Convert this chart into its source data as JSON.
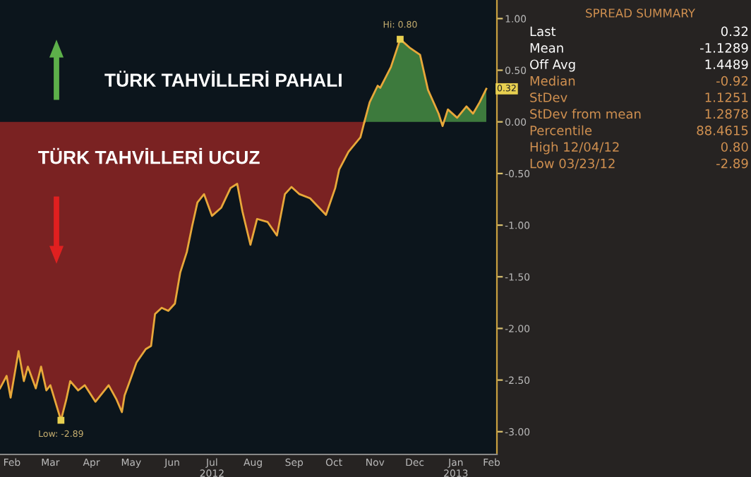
{
  "chart_data": [
    {
      "type": "area",
      "series": [
        {
          "color": "#7a2222",
          "x": [
            "2012-02-06",
            "2012-02-11",
            "2012-02-14",
            "2012-02-20",
            "2012-02-24",
            "2012-02-27",
            "2012-03-04",
            "2012-03-08",
            "2012-03-12",
            "2012-03-15",
            "2012-03-23",
            "2012-03-27",
            "2012-03-30",
            "2012-04-05",
            "2012-04-10",
            "2012-04-18",
            "2012-04-28",
            "2012-05-04",
            "2012-05-08",
            "2012-05-10",
            "2012-05-14",
            "2012-05-19",
            "2012-05-26",
            "2012-05-30",
            "2012-06-02",
            "2012-06-07",
            "2012-06-12",
            "2012-06-17",
            "2012-06-21",
            "2012-06-26",
            "2012-06-30",
            "2012-07-04",
            "2012-07-09",
            "2012-07-15",
            "2012-07-22",
            "2012-07-29",
            "2012-08-03",
            "2012-08-07",
            "2012-08-13",
            "2012-08-18",
            "2012-08-26",
            "2012-09-02",
            "2012-09-08",
            "2012-09-13",
            "2012-09-19",
            "2012-09-27",
            "2012-10-09",
            "2012-10-16",
            "2012-10-19",
            "2012-10-26",
            "2012-11-04",
            "2012-11-07"
          ],
          "values": [
            -2.58,
            -2.46,
            -2.67,
            -2.22,
            -2.51,
            -2.37,
            -2.58,
            -2.37,
            -2.6,
            -2.55,
            -2.89,
            -2.69,
            -2.51,
            -2.6,
            -2.55,
            -2.71,
            -2.55,
            -2.69,
            -2.81,
            -2.65,
            -2.51,
            -2.33,
            -2.2,
            -2.17,
            -1.86,
            -1.8,
            -1.83,
            -1.76,
            -1.46,
            -1.26,
            -1.01,
            -0.78,
            -0.7,
            -0.91,
            -0.83,
            -0.64,
            -0.6,
            -0.87,
            -1.19,
            -0.94,
            -0.97,
            -1.1,
            -0.7,
            -0.63,
            -0.7,
            -0.74,
            -0.9,
            -0.64,
            -0.46,
            -0.29,
            -0.15,
            0
          ]
        },
        {
          "color": "#3d7a3d",
          "x": [
            "2012-11-07",
            "2012-11-11",
            "2012-11-17",
            "2012-11-19",
            "2012-11-27",
            "2012-12-04",
            "2012-12-11",
            "2012-12-19",
            "2012-12-25",
            "2013-01-02",
            "2013-01-05",
            "2013-01-09",
            "2013-01-16",
            "2013-01-23",
            "2013-01-28",
            "2013-02-02",
            "2013-02-07"
          ],
          "values": [
            0,
            0.19,
            0.35,
            0.33,
            0.53,
            0.8,
            0.72,
            0.65,
            0.31,
            0.08,
            -0.04,
            0.12,
            0.04,
            0.15,
            0.08,
            0.19,
            0.32
          ]
        }
      ],
      "xlim": [
        "2012-02-06",
        "2013-02-15"
      ],
      "xticks": [
        {
          "value": "2012-02-15",
          "label": "Feb"
        },
        {
          "value": "2012-03-15",
          "label": "Mar"
        },
        {
          "value": "2012-04-15",
          "label": "Apr"
        },
        {
          "value": "2012-05-15",
          "label": "May"
        },
        {
          "value": "2012-06-15",
          "label": "Jun"
        },
        {
          "value": "2012-07-15",
          "label": "Jul\n2012"
        },
        {
          "value": "2012-08-15",
          "label": "Aug"
        },
        {
          "value": "2012-09-15",
          "label": "Sep"
        },
        {
          "value": "2012-10-15",
          "label": "Oct"
        },
        {
          "value": "2012-11-15",
          "label": "Nov"
        },
        {
          "value": "2012-12-15",
          "label": "Dec"
        },
        {
          "value": "2013-01-15",
          "label": "Jan\n2013"
        },
        {
          "value": "2013-02-11",
          "label": "Feb"
        }
      ],
      "ylim": [
        -3.22,
        1.18
      ],
      "yticks": [
        {
          "value": 1,
          "label": "1.00"
        },
        {
          "value": 0.5,
          "label": "0.50"
        },
        {
          "value": 0,
          "label": "0.00"
        },
        {
          "value": -0.5,
          "label": "-0.50"
        },
        {
          "value": -1,
          "label": "-1.00"
        },
        {
          "value": -1.5,
          "label": "-1.50"
        },
        {
          "value": -2,
          "label": "-2.00"
        },
        {
          "value": -2.5,
          "label": "-2.50"
        },
        {
          "value": -3,
          "label": "-3.00"
        }
      ],
      "grid": false,
      "legend": false,
      "annotations": [
        "TÜRK TAHVİLLERİ PAHALI",
        "TÜRK TAHVİLLERİ UCUZ",
        {
          "text": "Hi: 0.80",
          "x": "2012-12-04",
          "y": 0.8
        },
        {
          "text": "Low: -2.89",
          "x": "2012-03-23",
          "y": -2.89
        },
        {
          "text": "0.32",
          "x": "2013-02-07",
          "y": 0.32
        }
      ]
    },
    {
      "type": "other",
      "title": "SPREAD SUMMARY",
      "annotations": [
        "Last",
        "0.32",
        "Mean",
        "-1.1289",
        "Off Avg",
        "1.4489",
        "Median",
        "-0.92",
        "StDev",
        "1.1251",
        "StDev from mean",
        "1.2878",
        "Percentile",
        "88.4615",
        "High 12/04/12",
        "0.80",
        "Low 03/23/12",
        "-2.89"
      ]
    }
  ]
}
